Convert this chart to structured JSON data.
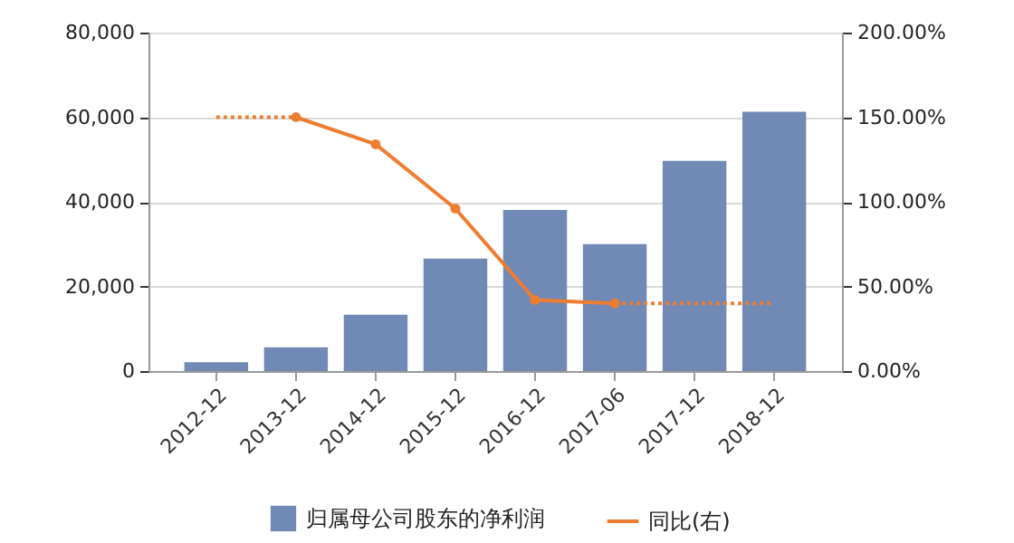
{
  "chart_data": {
    "type": "bar",
    "categories": [
      "2012-12",
      "2013-12",
      "2014-12",
      "2015-12",
      "2016-12",
      "2017-06",
      "2017-12",
      "2018-12"
    ],
    "series": [
      {
        "name": "归属母公司股东的净利润",
        "color": "#7189b5",
        "values": [
          2100,
          5600,
          13300,
          26600,
          38100,
          30000,
          49700,
          61300
        ]
      },
      {
        "name": "同比(右)",
        "type": "line",
        "axis": "y2",
        "color": "#ed7d31",
        "marker": "circle",
        "values": [
          null,
          150,
          134,
          96,
          42,
          40,
          null,
          null
        ]
      },
      {
        "type": "line",
        "axis": "y2",
        "color": "#ed7d31",
        "line_style": "dotted",
        "values": [
          150,
          150,
          null,
          null,
          null,
          null,
          null,
          null
        ]
      },
      {
        "type": "line",
        "axis": "y2",
        "color": "#ed7d31",
        "line_style": "dotted",
        "marker": "none",
        "values": [
          null,
          null,
          null,
          null,
          null,
          40,
          40,
          40
        ]
      }
    ],
    "ylim": [
      0,
      80000
    ],
    "yticks": [
      {
        "value": 0,
        "label": "0"
      },
      {
        "value": 20000,
        "label": "20,000"
      },
      {
        "value": 40000,
        "label": "40,000"
      },
      {
        "value": 60000,
        "label": "60,000"
      },
      {
        "value": 80000,
        "label": "80,000"
      }
    ],
    "y2lim": [
      0,
      200
    ],
    "y2ticks": [
      {
        "value": 0,
        "label": "0.00%"
      },
      {
        "value": 50,
        "label": "50.00%"
      },
      {
        "value": 100,
        "label": "100.00%"
      },
      {
        "value": 150,
        "label": "150.00%"
      },
      {
        "value": 200,
        "label": "200.00%"
      }
    ],
    "grid": "y",
    "legend": "bottom",
    "line_style": "solid"
  }
}
